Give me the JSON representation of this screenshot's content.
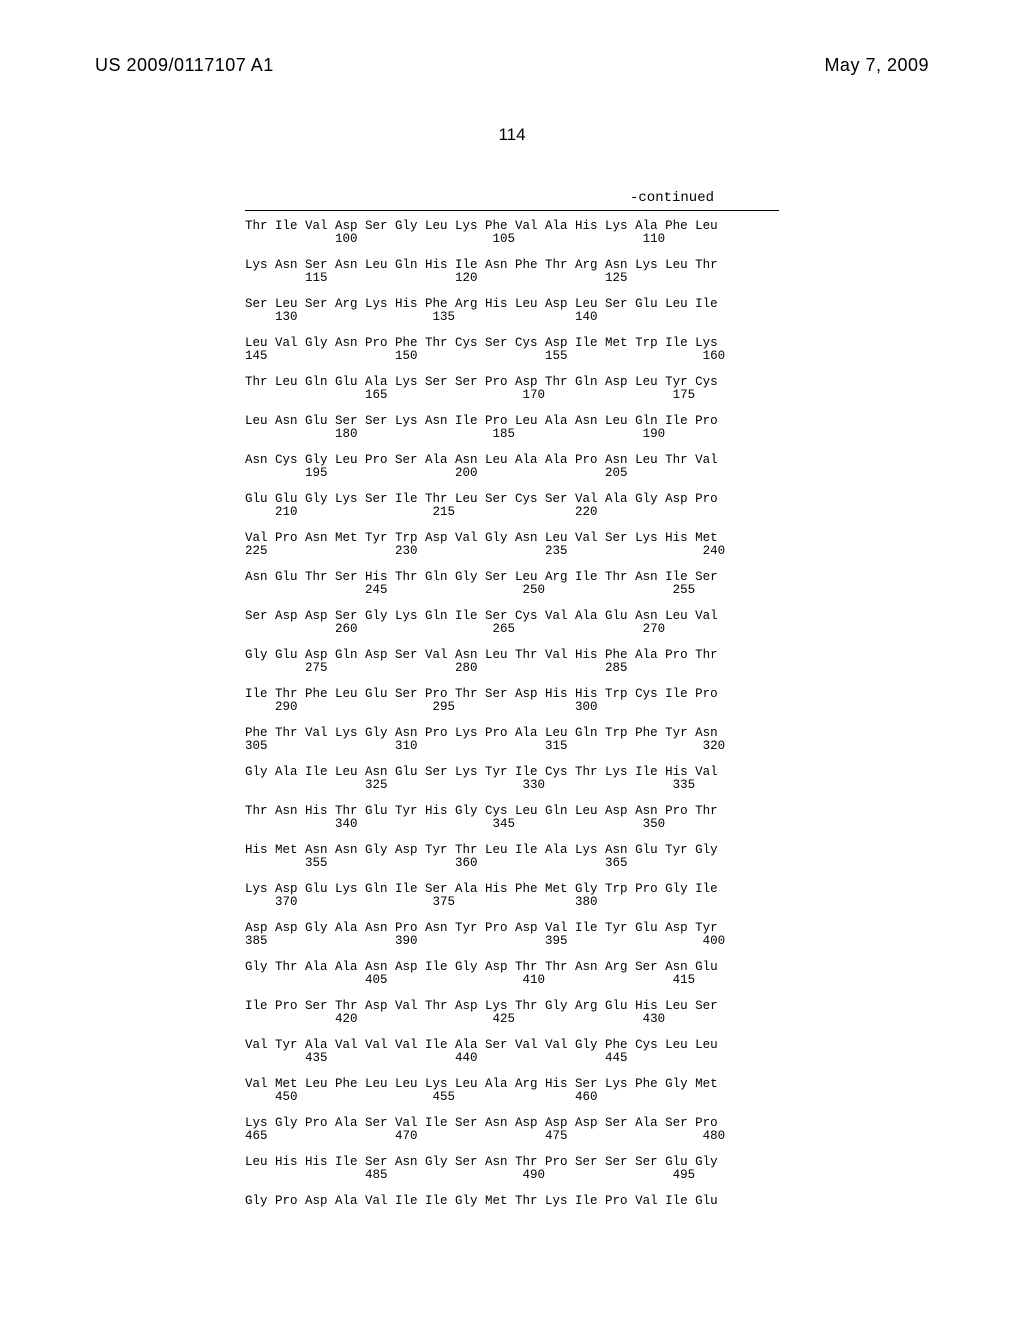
{
  "header": {
    "pub_number": "US 2009/0117107 A1",
    "pub_date": "May 7, 2009",
    "page_number": "114",
    "continued": "-continued"
  },
  "sequence": {
    "font_family": "Courier New",
    "font_size_pt": 10,
    "text_color": "#000000",
    "background_color": "#ffffff",
    "blocks": [
      {
        "aa": "Thr Ile Val Asp Ser Gly Leu Lys Phe Val Ala His Lys Ala Phe Leu",
        "nums": [
          [
            "100",
            12
          ],
          [
            "105",
            33
          ],
          [
            "110",
            53
          ]
        ]
      },
      {
        "aa": "Lys Asn Ser Asn Leu Gln His Ile Asn Phe Thr Arg Asn Lys Leu Thr",
        "nums": [
          [
            "115",
            8
          ],
          [
            "120",
            28
          ],
          [
            "125",
            48
          ]
        ]
      },
      {
        "aa": "Ser Leu Ser Arg Lys His Phe Arg His Leu Asp Leu Ser Glu Leu Ile",
        "nums": [
          [
            "130",
            4
          ],
          [
            "135",
            25
          ],
          [
            "140",
            44
          ]
        ]
      },
      {
        "aa": "Leu Val Gly Asn Pro Phe Thr Cys Ser Cys Asp Ile Met Trp Ile Lys",
        "nums": [
          [
            "145",
            0
          ],
          [
            "150",
            20
          ],
          [
            "155",
            40
          ],
          [
            "160",
            61
          ]
        ]
      },
      {
        "aa": "Thr Leu Gln Glu Ala Lys Ser Ser Pro Asp Thr Gln Asp Leu Tyr Cys",
        "nums": [
          [
            "165",
            16
          ],
          [
            "170",
            37
          ],
          [
            "175",
            57
          ]
        ]
      },
      {
        "aa": "Leu Asn Glu Ser Ser Lys Asn Ile Pro Leu Ala Asn Leu Gln Ile Pro",
        "nums": [
          [
            "180",
            12
          ],
          [
            "185",
            33
          ],
          [
            "190",
            53
          ]
        ]
      },
      {
        "aa": "Asn Cys Gly Leu Pro Ser Ala Asn Leu Ala Ala Pro Asn Leu Thr Val",
        "nums": [
          [
            "195",
            8
          ],
          [
            "200",
            28
          ],
          [
            "205",
            48
          ]
        ]
      },
      {
        "aa": "Glu Glu Gly Lys Ser Ile Thr Leu Ser Cys Ser Val Ala Gly Asp Pro",
        "nums": [
          [
            "210",
            4
          ],
          [
            "215",
            25
          ],
          [
            "220",
            44
          ]
        ]
      },
      {
        "aa": "Val Pro Asn Met Tyr Trp Asp Val Gly Asn Leu Val Ser Lys His Met",
        "nums": [
          [
            "225",
            0
          ],
          [
            "230",
            20
          ],
          [
            "235",
            40
          ],
          [
            "240",
            61
          ]
        ]
      },
      {
        "aa": "Asn Glu Thr Ser His Thr Gln Gly Ser Leu Arg Ile Thr Asn Ile Ser",
        "nums": [
          [
            "245",
            16
          ],
          [
            "250",
            37
          ],
          [
            "255",
            57
          ]
        ]
      },
      {
        "aa": "Ser Asp Asp Ser Gly Lys Gln Ile Ser Cys Val Ala Glu Asn Leu Val",
        "nums": [
          [
            "260",
            12
          ],
          [
            "265",
            33
          ],
          [
            "270",
            53
          ]
        ]
      },
      {
        "aa": "Gly Glu Asp Gln Asp Ser Val Asn Leu Thr Val His Phe Ala Pro Thr",
        "nums": [
          [
            "275",
            8
          ],
          [
            "280",
            28
          ],
          [
            "285",
            48
          ]
        ]
      },
      {
        "aa": "Ile Thr Phe Leu Glu Ser Pro Thr Ser Asp His His Trp Cys Ile Pro",
        "nums": [
          [
            "290",
            4
          ],
          [
            "295",
            25
          ],
          [
            "300",
            44
          ]
        ]
      },
      {
        "aa": "Phe Thr Val Lys Gly Asn Pro Lys Pro Ala Leu Gln Trp Phe Tyr Asn",
        "nums": [
          [
            "305",
            0
          ],
          [
            "310",
            20
          ],
          [
            "315",
            40
          ],
          [
            "320",
            61
          ]
        ]
      },
      {
        "aa": "Gly Ala Ile Leu Asn Glu Ser Lys Tyr Ile Cys Thr Lys Ile His Val",
        "nums": [
          [
            "325",
            16
          ],
          [
            "330",
            37
          ],
          [
            "335",
            57
          ]
        ]
      },
      {
        "aa": "Thr Asn His Thr Glu Tyr His Gly Cys Leu Gln Leu Asp Asn Pro Thr",
        "nums": [
          [
            "340",
            12
          ],
          [
            "345",
            33
          ],
          [
            "350",
            53
          ]
        ]
      },
      {
        "aa": "His Met Asn Asn Gly Asp Tyr Thr Leu Ile Ala Lys Asn Glu Tyr Gly",
        "nums": [
          [
            "355",
            8
          ],
          [
            "360",
            28
          ],
          [
            "365",
            48
          ]
        ]
      },
      {
        "aa": "Lys Asp Glu Lys Gln Ile Ser Ala His Phe Met Gly Trp Pro Gly Ile",
        "nums": [
          [
            "370",
            4
          ],
          [
            "375",
            25
          ],
          [
            "380",
            44
          ]
        ]
      },
      {
        "aa": "Asp Asp Gly Ala Asn Pro Asn Tyr Pro Asp Val Ile Tyr Glu Asp Tyr",
        "nums": [
          [
            "385",
            0
          ],
          [
            "390",
            20
          ],
          [
            "395",
            40
          ],
          [
            "400",
            61
          ]
        ]
      },
      {
        "aa": "Gly Thr Ala Ala Asn Asp Ile Gly Asp Thr Thr Asn Arg Ser Asn Glu",
        "nums": [
          [
            "405",
            16
          ],
          [
            "410",
            37
          ],
          [
            "415",
            57
          ]
        ]
      },
      {
        "aa": "Ile Pro Ser Thr Asp Val Thr Asp Lys Thr Gly Arg Glu His Leu Ser",
        "nums": [
          [
            "420",
            12
          ],
          [
            "425",
            33
          ],
          [
            "430",
            53
          ]
        ]
      },
      {
        "aa": "Val Tyr Ala Val Val Val Ile Ala Ser Val Val Gly Phe Cys Leu Leu",
        "nums": [
          [
            "435",
            8
          ],
          [
            "440",
            28
          ],
          [
            "445",
            48
          ]
        ]
      },
      {
        "aa": "Val Met Leu Phe Leu Leu Lys Leu Ala Arg His Ser Lys Phe Gly Met",
        "nums": [
          [
            "450",
            4
          ],
          [
            "455",
            25
          ],
          [
            "460",
            44
          ]
        ]
      },
      {
        "aa": "Lys Gly Pro Ala Ser Val Ile Ser Asn Asp Asp Asp Ser Ala Ser Pro",
        "nums": [
          [
            "465",
            0
          ],
          [
            "470",
            20
          ],
          [
            "475",
            40
          ],
          [
            "480",
            61
          ]
        ]
      },
      {
        "aa": "Leu His His Ile Ser Asn Gly Ser Asn Thr Pro Ser Ser Ser Glu Gly",
        "nums": [
          [
            "485",
            16
          ],
          [
            "490",
            37
          ],
          [
            "495",
            57
          ]
        ]
      },
      {
        "aa": "Gly Pro Asp Ala Val Ile Ile Gly Met Thr Lys Ile Pro Val Ile Glu",
        "nums": []
      }
    ]
  }
}
